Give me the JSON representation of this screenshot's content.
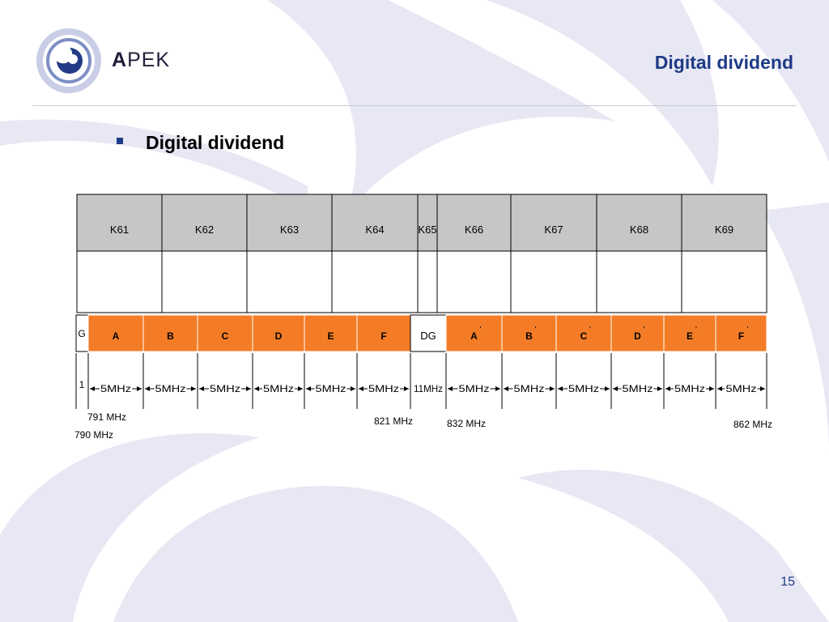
{
  "header": {
    "brand_bold": "A",
    "brand_rest": "PEK",
    "title": "Digital dividend"
  },
  "body": {
    "bullet": "Digital dividend"
  },
  "diagram": {
    "channels": [
      "K61",
      "K62",
      "K63",
      "K64",
      "K65",
      "K66",
      "K67",
      "K68",
      "K69"
    ],
    "row_label_guard": "G",
    "row_label_width": "1",
    "blocks": [
      {
        "label": "A",
        "color": "#f47c26"
      },
      {
        "label": "B",
        "color": "#f47c26"
      },
      {
        "label": "C",
        "color": "#f47c26"
      },
      {
        "label": "D",
        "color": "#f47c26"
      },
      {
        "label": "E",
        "color": "#f47c26"
      },
      {
        "label": "F",
        "color": "#f47c26"
      },
      {
        "label": "DG",
        "color": "#ffffff"
      },
      {
        "label": "A",
        "prime": "'",
        "color": "#f47c26"
      },
      {
        "label": "B",
        "prime": "'",
        "color": "#f47c26"
      },
      {
        "label": "C",
        "prime": "'",
        "color": "#f47c26"
      },
      {
        "label": "D",
        "prime": "'",
        "color": "#f47c26"
      },
      {
        "label": "E",
        "prime": "'",
        "color": "#f47c26"
      },
      {
        "label": "F",
        "prime": "'",
        "color": "#f47c26"
      }
    ],
    "widths": [
      "5MHz",
      "5MHz",
      "5MHz",
      "5MHz",
      "5MHz",
      "5MHz",
      "11MHz",
      "5MHz",
      "5MHz",
      "5MHz",
      "5MHz",
      "5MHz",
      "5MHz"
    ],
    "freq_labels": {
      "f791": "791 MHz",
      "f790": "790 MHz",
      "f821": "821 MHz",
      "f832": "832 MHz",
      "f862": "862 MHz"
    },
    "colors": {
      "header_gray": "#c6c6c6",
      "orange": "#f47c26",
      "grid": "#000000"
    }
  },
  "footer": {
    "page_number": "15"
  }
}
